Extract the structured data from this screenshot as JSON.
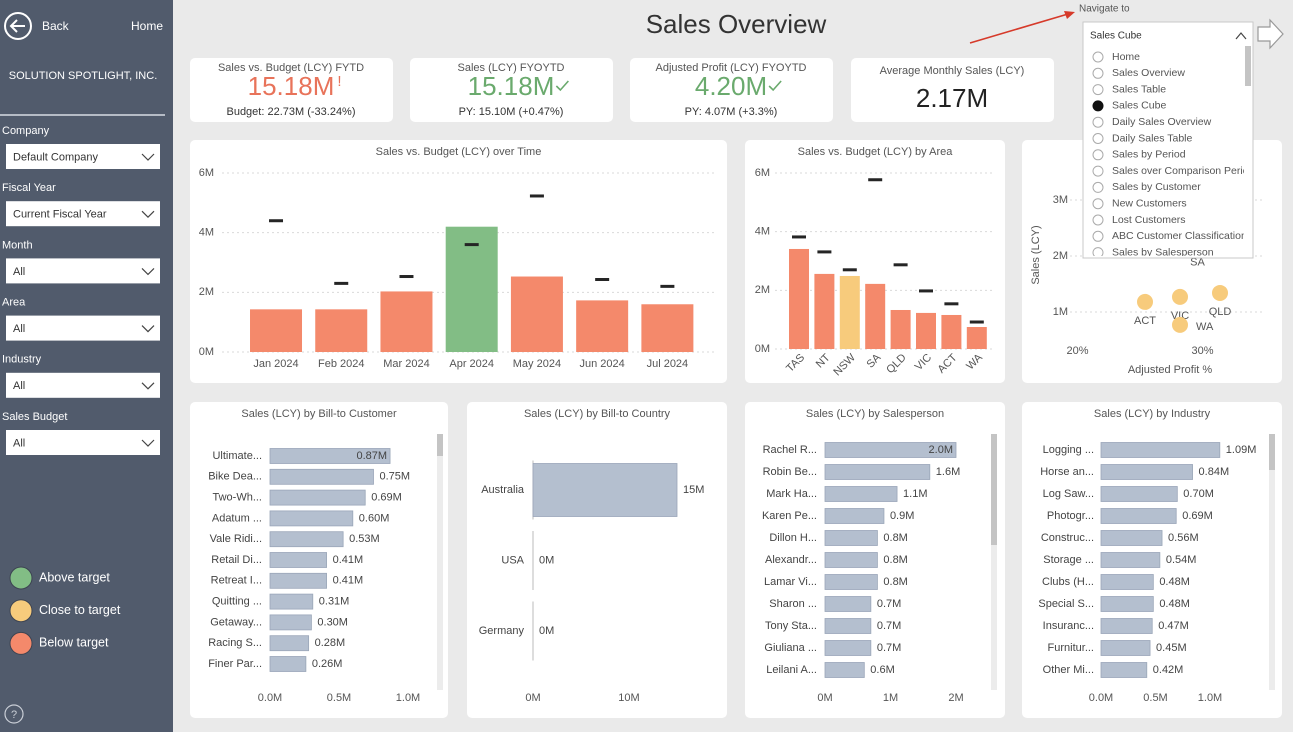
{
  "sidebar": {
    "back": "Back",
    "home": "Home",
    "company_name": "SOLUTION SPOTLIGHT, INC.",
    "filters": [
      {
        "label": "Company",
        "value": "Default Company"
      },
      {
        "label": "Fiscal Year",
        "value": "Current Fiscal Year"
      },
      {
        "label": "Month",
        "value": "All"
      },
      {
        "label": "Area",
        "value": "All"
      },
      {
        "label": "Industry",
        "value": "All"
      },
      {
        "label": "Sales Budget",
        "value": "All"
      }
    ],
    "legend": [
      {
        "label": "Above target",
        "color": "#82bd85"
      },
      {
        "label": "Close to target",
        "color": "#f7cb7c"
      },
      {
        "label": "Below target",
        "color": "#f4896b"
      }
    ],
    "help": "?"
  },
  "title": "Sales Overview",
  "kpis": [
    {
      "title": "Sales vs. Budget (LCY) FYTD",
      "value": "15.18M",
      "flag": "!",
      "subtitle": "Budget: 22.73M (-33.24%)",
      "color": "#e8735a"
    },
    {
      "title": "Sales (LCY) FYOYTD",
      "value": "15.18M",
      "check": true,
      "subtitle": "PY: 15.10M (+0.47%)",
      "color": "#6aaa6d"
    },
    {
      "title": "Adjusted Profit (LCY) FYOYTD",
      "value": "4.20M",
      "check": true,
      "subtitle": "PY: 4.07M (+3.3%)",
      "color": "#6aaa6d"
    },
    {
      "title": "Average Monthly Sales (LCY)",
      "value": "2.17M",
      "color": "#222222"
    }
  ],
  "navigator": {
    "label": "Navigate to",
    "selected": "Sales Cube",
    "options": [
      "Home",
      "Sales Overview",
      "Sales Table",
      "Sales Cube",
      "Daily Sales Overview",
      "Daily Sales Table",
      "Sales by Period",
      "Sales over Comparison Period",
      "Sales by Customer",
      "New Customers",
      "Lost Customers",
      "ABC Customer Classification",
      "Sales by Salesperson"
    ]
  },
  "charts": [
    {
      "type": "bar_budget",
      "title": "Sales vs. Budget (LCY) over Time",
      "categories": [
        "Jan 2024",
        "Feb 2024",
        "Mar 2024",
        "Apr 2024",
        "May 2024",
        "Jun 2024",
        "Jul 2024"
      ],
      "values": [
        1.43,
        1.43,
        2.03,
        4.2,
        2.53,
        1.73,
        1.6
      ],
      "budget": [
        4.4,
        2.3,
        2.53,
        3.6,
        5.23,
        2.43,
        2.2
      ],
      "colors": [
        "#f4896b",
        "#f4896b",
        "#f4896b",
        "#82bd85",
        "#f4896b",
        "#f4896b",
        "#f4896b"
      ],
      "ylim": [
        0,
        6
      ],
      "yticks": [
        {
          "value": 0,
          "label": "0M"
        },
        {
          "value": 2,
          "label": "2M"
        },
        {
          "value": 4,
          "label": "4M"
        },
        {
          "value": 6,
          "label": "6M"
        }
      ]
    },
    {
      "type": "bar_budget",
      "title": "Sales vs. Budget (LCY) by Area",
      "categories": [
        "TAS",
        "NT",
        "NSW",
        "SA",
        "QLD",
        "VIC",
        "ACT",
        "WA"
      ],
      "values": [
        3.41,
        2.56,
        2.49,
        2.22,
        1.33,
        1.23,
        1.16,
        0.75
      ],
      "budget": [
        3.82,
        3.31,
        2.7,
        5.77,
        2.87,
        1.98,
        1.54,
        0.92
      ],
      "colors": [
        "#f4896b",
        "#f4896b",
        "#f7cb7c",
        "#f4896b",
        "#f4896b",
        "#f4896b",
        "#f4896b",
        "#f4896b"
      ],
      "ylim": [
        0,
        6
      ],
      "yticks": [
        {
          "value": 0,
          "label": "0M"
        },
        {
          "value": 2,
          "label": "2M"
        },
        {
          "value": 4,
          "label": "4M"
        },
        {
          "value": 6,
          "label": "6M"
        }
      ]
    },
    {
      "type": "scatter",
      "x_label": "Adjusted Profit %",
      "y_label": "Sales (LCY)",
      "categories": [
        "SA",
        "ACT",
        "VIC",
        "QLD",
        "WA"
      ],
      "x": [
        29.6,
        25.4,
        28.2,
        31.4,
        28.2
      ],
      "values": [
        2.22,
        1.18,
        1.27,
        1.34,
        0.77
      ],
      "color": "#f7cb7c",
      "xlim": [
        19,
        35
      ],
      "xticks": [
        {
          "value": 20,
          "label": "20%"
        },
        {
          "value": 30,
          "label": "30%"
        }
      ],
      "ylim": [
        0.5,
        3.5
      ],
      "yticks": [
        {
          "value": 1,
          "label": "1M"
        },
        {
          "value": 2,
          "label": "2M"
        },
        {
          "value": 3,
          "label": "3M"
        }
      ]
    },
    {
      "type": "hbar",
      "title": "Sales (LCY) by Bill-to Customer",
      "categories": [
        "Ultimate...",
        "Bike Dea...",
        "Two-Wh...",
        "Adatum ...",
        "Vale Ridi...",
        "Retail Di...",
        "Retreat I...",
        "Quitting ...",
        "Getaway...",
        "Racing S...",
        "Finer Par..."
      ],
      "values": [
        0.87,
        0.75,
        0.69,
        0.6,
        0.53,
        0.41,
        0.41,
        0.31,
        0.3,
        0.28,
        0.26
      ],
      "value_labels": [
        "0.87M",
        "0.75M",
        "0.69M",
        "0.60M",
        "0.53M",
        "0.41M",
        "0.41M",
        "0.31M",
        "0.30M",
        "0.28M",
        "0.26M"
      ],
      "color": "#b4bfcf",
      "xlim": [
        0,
        1.0
      ],
      "xticks": [
        {
          "value": 0,
          "label": "0.0M"
        },
        {
          "value": 0.5,
          "label": "0.5M"
        },
        {
          "value": 1.0,
          "label": "1.0M"
        }
      ]
    },
    {
      "type": "hbar",
      "title": "Sales (LCY) by Bill-to Country",
      "categories": [
        "Australia",
        "USA",
        "Germany"
      ],
      "values": [
        15,
        0,
        0
      ],
      "value_labels": [
        "15M",
        "0M",
        "0M"
      ],
      "color": "#b4bfcf",
      "xlim": [
        0,
        16
      ],
      "xticks": [
        {
          "value": 0,
          "label": "0M"
        },
        {
          "value": 10,
          "label": "10M"
        }
      ]
    },
    {
      "type": "hbar",
      "title": "Sales (LCY) by Salesperson",
      "categories": [
        "Rachel R...",
        "Robin Be...",
        "Mark Ha...",
        "Karen Pe...",
        "Dillon H...",
        "Alexandr...",
        "Lamar Vi...",
        "Sharon ...",
        "Tony Sta...",
        "Giuliana ...",
        "Leilani A..."
      ],
      "values": [
        2.0,
        1.6,
        1.1,
        0.9,
        0.8,
        0.8,
        0.8,
        0.7,
        0.7,
        0.7,
        0.6
      ],
      "value_labels": [
        "2.0M",
        "1.6M",
        "1.1M",
        "0.9M",
        "0.8M",
        "0.8M",
        "0.8M",
        "0.7M",
        "0.7M",
        "0.7M",
        "0.6M"
      ],
      "color": "#b4bfcf",
      "xlim": [
        0,
        2
      ],
      "xticks": [
        {
          "value": 0,
          "label": "0M"
        },
        {
          "value": 1,
          "label": "1M"
        },
        {
          "value": 2,
          "label": "2M"
        }
      ]
    },
    {
      "type": "hbar",
      "title": "Sales (LCY) by Industry",
      "categories": [
        "Logging ...",
        "Horse an...",
        "Log Saw...",
        "Photogr...",
        "Construc...",
        "Storage ...",
        "Clubs (H...",
        "Special S...",
        "Insuranc...",
        "Furnitur...",
        "Other Mi..."
      ],
      "values": [
        1.09,
        0.84,
        0.7,
        0.69,
        0.56,
        0.54,
        0.48,
        0.48,
        0.47,
        0.45,
        0.42
      ],
      "value_labels": [
        "1.09M",
        "0.84M",
        "0.70M",
        "0.69M",
        "0.56M",
        "0.54M",
        "0.48M",
        "0.48M",
        "0.47M",
        "0.45M",
        "0.42M"
      ],
      "color": "#b4bfcf",
      "xlim": [
        0,
        1.0
      ],
      "xticks": [
        {
          "value": 0,
          "label": "0.0M"
        },
        {
          "value": 0.5,
          "label": "0.5M"
        },
        {
          "value": 1.0,
          "label": "1.0M"
        }
      ]
    }
  ]
}
